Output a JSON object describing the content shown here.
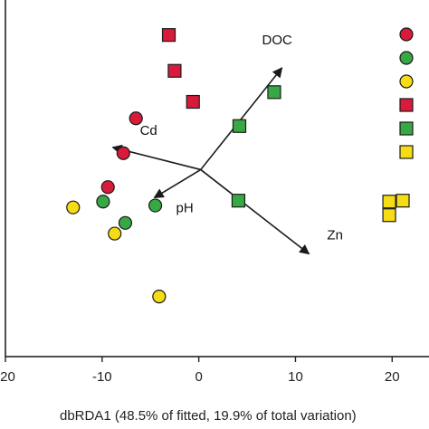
{
  "chart_data": {
    "type": "scatter",
    "title": "",
    "xlabel": "dbRDA1 (48.5% of fitted, 19.9% of total variation)",
    "ylabel": "",
    "xlim": [
      -20,
      24
    ],
    "ylim": [
      -19,
      18
    ],
    "xticks": [
      -20,
      -10,
      0,
      10,
      20
    ],
    "xtick_labels": [
      "-20",
      "-10",
      "0",
      "10",
      "20"
    ],
    "grid": false,
    "colors": {
      "red": "#d81b3a",
      "green": "#38a844",
      "yellow": "#f5dc14",
      "outline": "#1a1a1a",
      "arrow": "#1a1a1a"
    },
    "series": [
      {
        "shape": "circle",
        "color": "red",
        "points": [
          [
            -6.5,
            5.6
          ],
          [
            -7.8,
            2.0
          ],
          [
            -9.4,
            -1.5
          ]
        ]
      },
      {
        "shape": "circle",
        "color": "green",
        "points": [
          [
            -9.9,
            -3.0
          ],
          [
            -4.5,
            -3.4
          ],
          [
            -7.6,
            -5.2
          ]
        ]
      },
      {
        "shape": "circle",
        "color": "yellow",
        "points": [
          [
            -13.0,
            -3.6
          ],
          [
            -8.7,
            -6.3
          ],
          [
            -4.1,
            -12.8
          ]
        ]
      },
      {
        "shape": "square",
        "color": "red",
        "points": [
          [
            -3.1,
            14.2
          ],
          [
            -2.5,
            10.5
          ],
          [
            -0.6,
            7.3
          ]
        ]
      },
      {
        "shape": "square",
        "color": "green",
        "points": [
          [
            7.8,
            8.3
          ],
          [
            4.2,
            4.8
          ],
          [
            4.1,
            -2.9
          ]
        ]
      },
      {
        "shape": "square",
        "color": "yellow",
        "points": [
          [
            19.7,
            -3.0
          ],
          [
            21.1,
            -2.9
          ],
          [
            19.7,
            -4.4
          ]
        ]
      }
    ],
    "legend": {
      "placement": "right",
      "entries": [
        {
          "shape": "circle",
          "color": "red"
        },
        {
          "shape": "circle",
          "color": "green"
        },
        {
          "shape": "circle",
          "color": "yellow"
        },
        {
          "shape": "square",
          "color": "red"
        },
        {
          "shape": "square",
          "color": "green"
        },
        {
          "shape": "square",
          "color": "yellow"
        }
      ]
    },
    "vectors": [
      {
        "label": "DOC",
        "end": [
          8.6,
          10.8
        ]
      },
      {
        "label": "Cd",
        "end": [
          -8.9,
          2.6
        ]
      },
      {
        "label": "pH",
        "end": [
          -4.6,
          -2.6
        ]
      },
      {
        "label": "Zn",
        "end": [
          11.4,
          -8.4
        ]
      }
    ],
    "vector_origin": [
      0.2,
      0.3
    ]
  }
}
